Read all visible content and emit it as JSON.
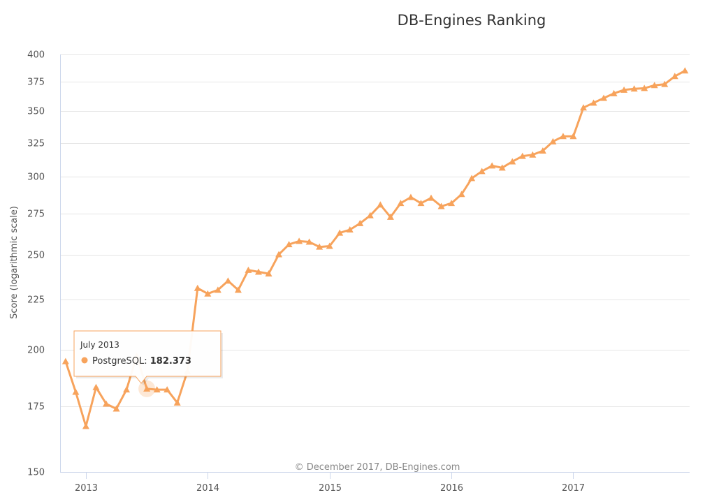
{
  "chart_data": {
    "type": "line",
    "title": "DB-Engines Ranking",
    "ylabel": "Score (logarithmic scale)",
    "xlabel": "",
    "credit": "© December 2017, DB-Engines.com",
    "y_scale": "log",
    "ylim": [
      150,
      400
    ],
    "yticks": [
      "400",
      "375",
      "350",
      "325",
      "300",
      "275",
      "250",
      "225",
      "200",
      "175",
      "150"
    ],
    "xlim": [
      "2012-10-15",
      "2017-12-15"
    ],
    "xticks": [
      "2013",
      "2014",
      "2015",
      "2016",
      "2017"
    ],
    "grid": true,
    "series": [
      {
        "name": "PostgreSQL",
        "color": "#f7a35c",
        "marker": "triangle",
        "x": [
          "2012-11",
          "2012-12",
          "2013-01",
          "2013-02",
          "2013-03",
          "2013-04",
          "2013-05",
          "2013-06",
          "2013-07",
          "2013-08",
          "2013-09",
          "2013-10",
          "2013-11",
          "2013-12",
          "2014-01",
          "2014-02",
          "2014-03",
          "2014-04",
          "2014-05",
          "2014-06",
          "2014-07",
          "2014-08",
          "2014-09",
          "2014-10",
          "2014-11",
          "2014-12",
          "2015-01",
          "2015-02",
          "2015-03",
          "2015-04",
          "2015-05",
          "2015-06",
          "2015-07",
          "2015-08",
          "2015-09",
          "2015-10",
          "2015-11",
          "2015-12",
          "2016-01",
          "2016-02",
          "2016-03",
          "2016-04",
          "2016-05",
          "2016-06",
          "2016-07",
          "2016-08",
          "2016-09",
          "2016-10",
          "2016-11",
          "2016-12",
          "2017-01",
          "2017-02",
          "2017-03",
          "2017-04",
          "2017-05",
          "2017-06",
          "2017-07",
          "2017-08",
          "2017-09",
          "2017-10",
          "2017-11",
          "2017-12"
        ],
        "values": [
          194.5,
          181,
          167,
          183,
          176,
          174,
          182,
          197,
          182.373,
          182,
          182,
          176.5,
          190,
          231,
          228,
          230,
          235,
          230,
          241,
          240,
          239,
          250,
          256,
          258,
          257.5,
          254.5,
          255,
          263,
          265,
          269,
          274,
          281,
          273,
          282,
          286,
          282,
          285.5,
          280,
          282,
          288,
          299,
          304,
          308,
          306.5,
          311,
          315,
          316,
          319,
          326,
          330,
          330,
          353,
          357,
          361,
          365,
          368,
          369,
          369.5,
          372,
          373,
          380,
          385
        ]
      }
    ],
    "tooltip": {
      "date": "July 2013",
      "series": "PostgreSQL",
      "value": "182.373",
      "point_index": 8
    }
  }
}
